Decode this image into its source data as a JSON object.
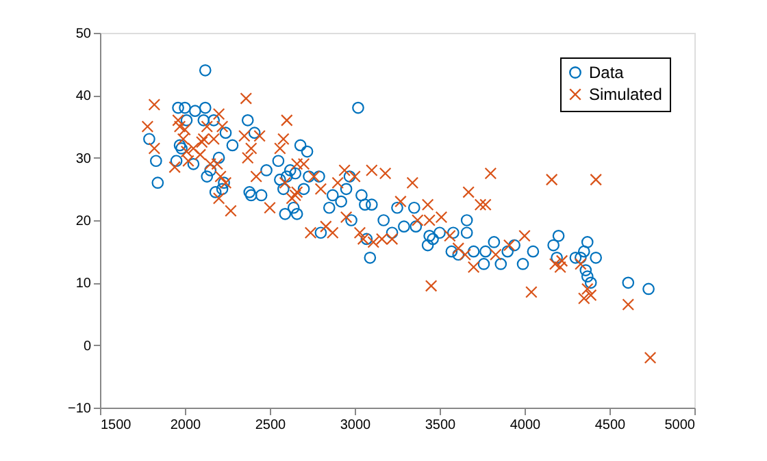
{
  "chart_data": {
    "type": "scatter",
    "xlim": [
      1500,
      5000
    ],
    "ylim": [
      -10,
      50
    ],
    "xticks": [
      1500,
      2000,
      2500,
      3000,
      3500,
      4000,
      4500,
      5000
    ],
    "yticks": [
      -10,
      0,
      10,
      20,
      30,
      40,
      50
    ],
    "legend": "top right",
    "grid": false,
    "series": [
      {
        "name": "Data",
        "color": "#0072bd",
        "marker": "circle",
        "x": [
          1790,
          1830,
          1840,
          1950,
          1960,
          1970,
          1980,
          2000,
          2010,
          2050,
          2060,
          2120,
          2120,
          2110,
          2130,
          2150,
          2170,
          2180,
          2200,
          2230,
          2220,
          2240,
          2280,
          2370,
          2380,
          2390,
          2410,
          2450,
          2480,
          2550,
          2560,
          2580,
          2590,
          2600,
          2620,
          2640,
          2650,
          2660,
          2680,
          2700,
          2720,
          2730,
          2790,
          2800,
          2850,
          2870,
          2920,
          2950,
          2970,
          2980,
          3020,
          3040,
          3060,
          3070,
          3090,
          3100,
          3170,
          3220,
          3250,
          3290,
          3350,
          3360,
          3430,
          3440,
          3460,
          3500,
          3570,
          3580,
          3610,
          3660,
          3660,
          3700,
          3760,
          3770,
          3820,
          3860,
          3900,
          3940,
          3990,
          4050,
          4170,
          4190,
          4200,
          4300,
          4330,
          4350,
          4360,
          4370,
          4370,
          4390,
          4420,
          4610,
          4730
        ],
        "values": [
          33,
          29.5,
          26,
          29.5,
          38,
          32,
          31.5,
          38,
          36,
          29,
          37.5,
          44,
          38,
          36,
          27,
          28,
          36,
          24.5,
          30,
          26,
          25,
          34,
          32,
          36,
          24.5,
          24,
          34,
          24,
          28,
          29.5,
          26.5,
          25,
          21,
          27,
          28,
          22,
          27.5,
          21,
          32,
          25,
          31,
          27,
          27,
          18,
          22,
          24,
          23,
          25,
          27,
          20,
          38,
          24,
          22.5,
          17,
          14,
          22.5,
          20,
          18,
          22,
          19,
          22,
          19,
          16,
          17.5,
          17,
          18,
          15,
          18,
          14.5,
          20,
          18,
          15,
          13,
          15,
          16.5,
          13,
          15,
          16,
          13,
          15,
          16,
          14,
          17.5,
          14,
          14,
          15,
          12,
          11,
          16.5,
          10,
          14,
          10,
          9
        ]
      },
      {
        "name": "Simulated",
        "color": "#d95319",
        "marker": "cross",
        "x": [
          1780,
          1820,
          1820,
          1940,
          1960,
          1970,
          1990,
          2000,
          2010,
          2020,
          2050,
          2090,
          2100,
          2110,
          2130,
          2150,
          2170,
          2190,
          2200,
          2220,
          2200,
          2210,
          2240,
          2270,
          2360,
          2350,
          2370,
          2390,
          2420,
          2440,
          2500,
          2560,
          2580,
          2600,
          2590,
          2630,
          2650,
          2660,
          2660,
          2700,
          2740,
          2760,
          2800,
          2830,
          2870,
          2900,
          2940,
          2950,
          3000,
          3030,
          3050,
          3100,
          3110,
          3180,
          3160,
          3220,
          3270,
          3340,
          3370,
          3430,
          3440,
          3450,
          3510,
          3560,
          3610,
          3650,
          3670,
          3700,
          3740,
          3770,
          3800,
          3830,
          3910,
          4000,
          4040,
          4160,
          4180,
          4210,
          4220,
          4330,
          4350,
          4370,
          4390,
          4420,
          4610,
          4740
        ],
        "values": [
          35,
          38.5,
          31.5,
          28.5,
          36,
          35,
          33,
          34.5,
          31,
          29.5,
          31.5,
          30.5,
          32.5,
          33,
          35,
          29,
          33,
          29,
          37,
          35,
          23.5,
          27,
          26,
          21.5,
          39.5,
          33.5,
          30,
          31.5,
          27,
          33.5,
          22,
          31.5,
          33,
          36,
          26,
          23.5,
          24,
          29,
          24.5,
          29,
          18,
          27,
          25,
          19,
          18,
          26,
          28,
          20.5,
          27,
          18,
          17,
          28,
          16.5,
          27.5,
          17,
          17,
          23,
          26,
          20,
          22.5,
          20,
          9.5,
          20.5,
          17.5,
          15.5,
          14.5,
          24.5,
          12.5,
          22.5,
          22.5,
          27.5,
          14.5,
          16,
          17.5,
          8.5,
          26.5,
          13,
          12.5,
          13.5,
          13,
          7.5,
          9,
          8,
          26.5,
          6.5,
          -2
        ]
      }
    ]
  }
}
